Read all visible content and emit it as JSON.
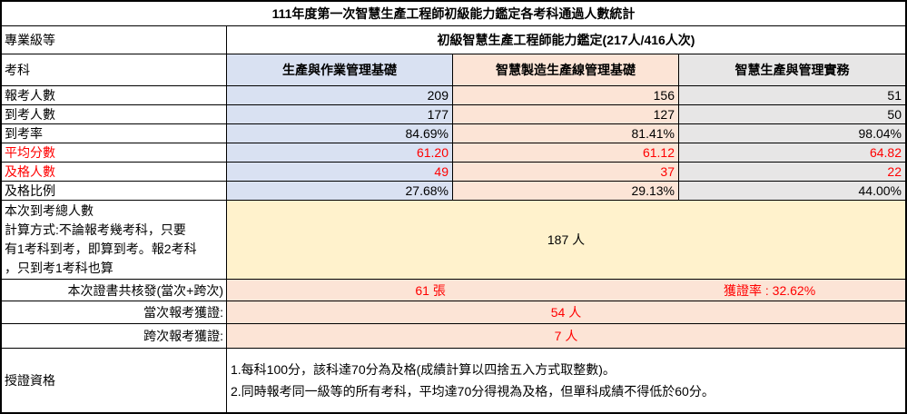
{
  "title": "111年度第一次智慧生產工程師初級能力鑑定各考科通過人數統計",
  "level_row": {
    "label": "專業級等",
    "value": "初級智慧生產工程師能力鑑定(217人/416人次)"
  },
  "subjects_row": {
    "label": "考科",
    "subjects": [
      "生產與作業管理基礎",
      "智慧製造生產線管理基礎",
      "智慧生產與管理實務"
    ]
  },
  "stat_rows": [
    {
      "label": "報考人數",
      "values": [
        "209",
        "156",
        "51"
      ]
    },
    {
      "label": "到考人數",
      "values": [
        "177",
        "127",
        "50"
      ]
    },
    {
      "label": "到考率",
      "values": [
        "84.69%",
        "81.41%",
        "98.04%"
      ]
    },
    {
      "label": "平均分數",
      "values": [
        "61.20",
        "61.12",
        "64.82"
      ]
    },
    {
      "label": "及格人數",
      "values": [
        "49",
        "37",
        "22"
      ]
    },
    {
      "label": "及格比例",
      "values": [
        "27.68%",
        "29.13%",
        "44.00%"
      ]
    }
  ],
  "attended_total": {
    "label_lines": [
      "本次到考總人數",
      "計算方式:不論報考幾考科，只要",
      "有1考科到考，即算到考。報2考科",
      "，只到考1考科也算"
    ],
    "value": "187 人"
  },
  "cert_row": {
    "label": "本次證書共核發(當次+跨次)",
    "count": "61 張",
    "rate": "獲證率 : 32.62%"
  },
  "current_row": {
    "label": "當次報考獲證:",
    "value": "54 人"
  },
  "cross_row": {
    "label": "跨次報考獲證:",
    "value": "7 人"
  },
  "qualification": {
    "label": "授證資格",
    "lines": [
      "1.每科100分，該科達70分為及格(成績計算以四捨五入方式取整數)。",
      "2.同時報考同一級等的所有考科，平均達70分得視為及格，但單科成績不得低於60分。"
    ]
  },
  "colors": {
    "subject1_bg": "#D9E1F2",
    "subject2_bg": "#FCE4D6",
    "subject3_bg": "#E7E6E6",
    "total_bg": "#FFF2CC",
    "cert_bg": "#FCE4D6",
    "accent_red": "#FF0000",
    "border": "#000000"
  }
}
